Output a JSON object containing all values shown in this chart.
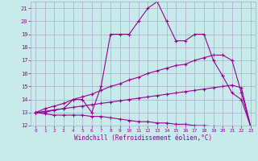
{
  "xlabel": "Windchill (Refroidissement éolien,°C)",
  "x": [
    0,
    1,
    2,
    3,
    4,
    5,
    6,
    7,
    8,
    9,
    10,
    11,
    12,
    13,
    14,
    15,
    16,
    17,
    18,
    19,
    20,
    21,
    22,
    23
  ],
  "line1": [
    13,
    13,
    13.2,
    13.3,
    14,
    14,
    13,
    15,
    19,
    19,
    19,
    20,
    21,
    21.5,
    20,
    18.5,
    18.5,
    19,
    19,
    17,
    15.8,
    14.5,
    14,
    11.9
  ],
  "line2": [
    13,
    13.3,
    13.5,
    13.7,
    14,
    14.2,
    14.4,
    14.7,
    15,
    15.2,
    15.5,
    15.7,
    16.0,
    16.2,
    16.4,
    16.6,
    16.7,
    17.0,
    17.2,
    17.4,
    17.4,
    17.0,
    14.5,
    11.9
  ],
  "line3": [
    13,
    13.1,
    13.2,
    13.3,
    13.4,
    13.5,
    13.6,
    13.7,
    13.8,
    13.9,
    14.0,
    14.1,
    14.2,
    14.3,
    14.4,
    14.5,
    14.6,
    14.7,
    14.8,
    14.9,
    15.0,
    15.1,
    14.9,
    11.9
  ],
  "line4": [
    13,
    12.9,
    12.8,
    12.8,
    12.8,
    12.8,
    12.7,
    12.7,
    12.6,
    12.5,
    12.4,
    12.3,
    12.3,
    12.2,
    12.2,
    12.1,
    12.1,
    12.0,
    12.0,
    11.95,
    11.9,
    11.9,
    11.9,
    11.9
  ],
  "bg_color": "#c8eaea",
  "line_color": "#990099",
  "grid_color": "#aaaacc",
  "ylim": [
    12,
    21.5
  ],
  "xlim": [
    -0.5,
    23.5
  ],
  "yticks": [
    12,
    13,
    14,
    15,
    16,
    17,
    18,
    19,
    20,
    21
  ],
  "xticks": [
    0,
    1,
    2,
    3,
    4,
    5,
    6,
    7,
    8,
    9,
    10,
    11,
    12,
    13,
    14,
    15,
    16,
    17,
    18,
    19,
    20,
    21,
    22,
    23
  ]
}
